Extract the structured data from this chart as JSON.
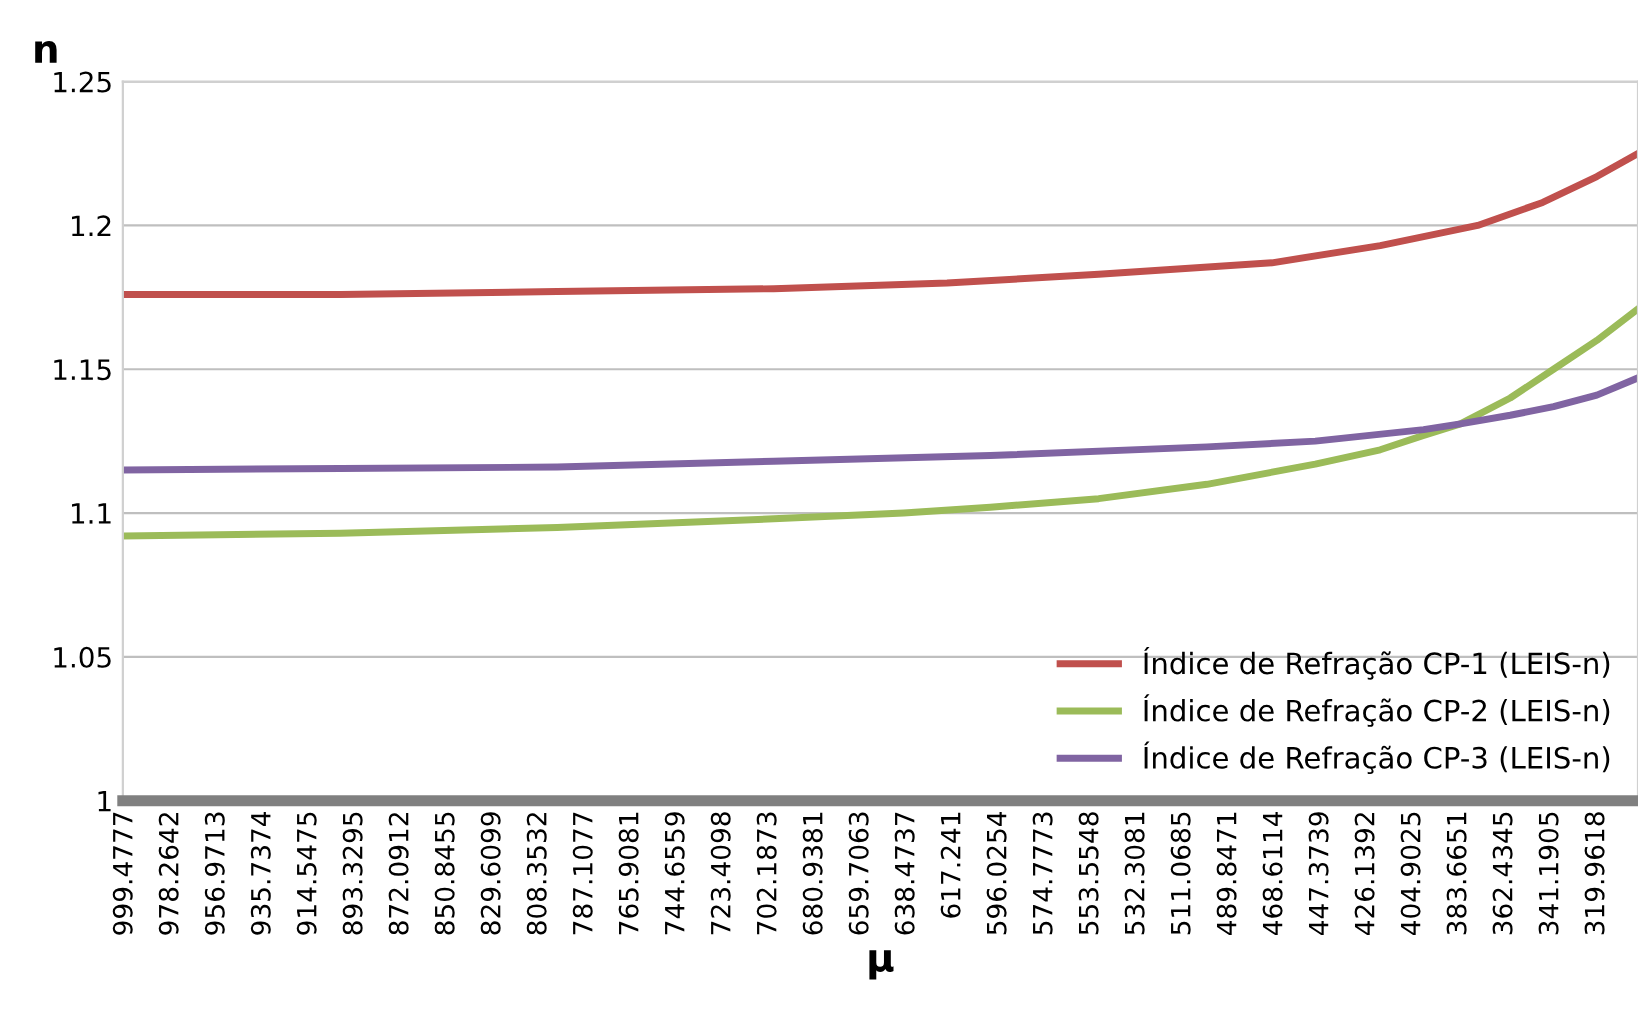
{
  "chart_data": {
    "type": "line",
    "xlabel": "μ",
    "ylabel": "n",
    "xlim": [
      1000.5,
      301
    ],
    "ylim": [
      1,
      1.25
    ],
    "xticks": [
      999.4777,
      978.2642,
      956.9713,
      935.7374,
      914.5475,
      893.3295,
      872.0912,
      850.8455,
      829.6099,
      808.3532,
      787.1077,
      765.9081,
      744.6559,
      723.4098,
      702.1873,
      680.9381,
      659.7063,
      638.4737,
      617.241,
      596.0254,
      574.7773,
      553.5548,
      532.3081,
      511.0685,
      489.8471,
      468.6114,
      447.3739,
      426.1392,
      404.9025,
      383.6651,
      362.4345,
      341.1905,
      319.9618
    ],
    "yticks": [
      1,
      1.05,
      1.1,
      1.15,
      1.2,
      1.25
    ],
    "grid": "y",
    "legend": "bottom right",
    "marker": "none",
    "line_style": "solid",
    "series": [
      {
        "name": "Índice de Refração CP-1 (LEIS-n)",
        "color": "#c0504d",
        "x": [
          1000,
          900,
          800,
          700,
          620,
          550,
          470,
          420,
          375,
          345,
          320,
          301
        ],
        "values": [
          1.176,
          1.176,
          1.177,
          1.178,
          1.18,
          1.183,
          1.187,
          1.193,
          1.2,
          1.208,
          1.217,
          1.225
        ]
      },
      {
        "name": "Índice de Refração CP-2 (LEIS-n)",
        "color": "#9bbb59",
        "x": [
          1000,
          900,
          800,
          700,
          640,
          600,
          550,
          500,
          450,
          420,
          400,
          383,
          360,
          340,
          320,
          301
        ],
        "values": [
          1.092,
          1.093,
          1.095,
          1.098,
          1.1,
          1.102,
          1.105,
          1.11,
          1.117,
          1.122,
          1.127,
          1.131,
          1.14,
          1.15,
          1.16,
          1.171
        ]
      },
      {
        "name": "Índice de Refração CP-3 (LEIS-n)",
        "color": "#8064a2",
        "x": [
          1000,
          900,
          800,
          700,
          600,
          500,
          450,
          400,
          383,
          360,
          340,
          320,
          301
        ],
        "values": [
          1.115,
          1.1155,
          1.116,
          1.118,
          1.12,
          1.123,
          1.125,
          1.129,
          1.131,
          1.134,
          1.137,
          1.141,
          1.147
        ]
      }
    ]
  }
}
